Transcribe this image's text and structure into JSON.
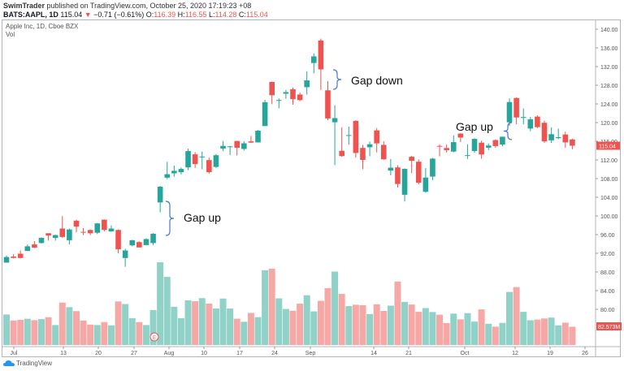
{
  "header": {
    "publisher": "SwimTrader",
    "published_text": "published on TradingView.com, October 25, 2020 17:19:23 +08",
    "symbol": "BATS:AAPL, 1D",
    "last": "115.04",
    "change": "−0.71 (−0.61%)",
    "o_label": "O:",
    "o": "116.39",
    "h_label": "H:",
    "h": "116.55",
    "l_label": "L:",
    "l": "114.28",
    "c_label": "C:",
    "c": "115.04"
  },
  "legend": {
    "title": "Apple Inc, 1D, Cboe BZX",
    "vol": "Vol"
  },
  "footer": {
    "brand": "TradingView"
  },
  "colors": {
    "up": "#26a69a",
    "down": "#ef5350",
    "vol_up": "#90d1c8",
    "vol_down": "#f6a8a6",
    "annotation": "#4a78c9"
  },
  "chart_data": {
    "type": "candlestick",
    "title": "Apple Inc, 1D, Cboe BZX",
    "ylim": [
      76,
      142
    ],
    "y_ticks": [
      "140.00",
      "136.00",
      "132.00",
      "128.00",
      "124.00",
      "120.00",
      "116.00",
      "112.00",
      "108.00",
      "104.00",
      "100.00",
      "96.00",
      "92.00",
      "88.00",
      "84.00",
      "80.00"
    ],
    "x_tick_labels": [
      "Jul",
      "13",
      "20",
      "27",
      "Aug",
      "10",
      "17",
      "24",
      "Sep",
      "14",
      "21",
      "Oct",
      "12",
      "19",
      "26"
    ],
    "last_price_label": "115.04",
    "last_volume_label": "82.573M",
    "earnings_marker": "E",
    "annotations": [
      {
        "text": "Gap up",
        "date": "2020-07-31"
      },
      {
        "text": "Gap down",
        "date": "2020-09-03"
      },
      {
        "text": "Gap up",
        "date": "2020-10-12"
      }
    ],
    "dates": [
      "06-30",
      "07-01",
      "07-02",
      "07-06",
      "07-07",
      "07-08",
      "07-09",
      "07-10",
      "07-13",
      "07-14",
      "07-15",
      "07-16",
      "07-17",
      "07-20",
      "07-21",
      "07-22",
      "07-23",
      "07-24",
      "07-27",
      "07-28",
      "07-29",
      "07-30",
      "07-31",
      "08-03",
      "08-04",
      "08-05",
      "08-06",
      "08-07",
      "08-10",
      "08-11",
      "08-12",
      "08-13",
      "08-14",
      "08-17",
      "08-18",
      "08-19",
      "08-20",
      "08-21",
      "08-24",
      "08-25",
      "08-26",
      "08-27",
      "08-28",
      "08-31",
      "09-01",
      "09-02",
      "09-03",
      "09-04",
      "09-08",
      "09-09",
      "09-10",
      "09-11",
      "09-14",
      "09-15",
      "09-16",
      "09-17",
      "09-18",
      "09-21",
      "09-22",
      "09-23",
      "09-24",
      "09-25",
      "09-28",
      "09-29",
      "09-30",
      "10-01",
      "10-02",
      "10-05",
      "10-06",
      "10-07",
      "10-08",
      "10-09",
      "10-12",
      "10-13",
      "10-14",
      "10-15",
      "10-16",
      "10-19",
      "10-20",
      "10-21",
      "10-22",
      "10-23"
    ],
    "ohlc": [
      [
        90.0,
        91.5,
        90.0,
        91.2
      ],
      [
        91.3,
        91.8,
        90.9,
        91.0
      ],
      [
        91.9,
        92.6,
        90.9,
        91.0
      ],
      [
        92.5,
        93.9,
        92.5,
        93.5
      ],
      [
        93.9,
        94.6,
        93.1,
        93.2
      ],
      [
        94.2,
        95.4,
        94.1,
        95.3
      ],
      [
        96.3,
        96.3,
        94.7,
        95.8
      ],
      [
        95.3,
        95.98,
        94.7,
        95.9
      ],
      [
        97.3,
        99.96,
        95.3,
        95.5
      ],
      [
        94.8,
        97.3,
        93.9,
        97.1
      ],
      [
        98.99,
        99.2,
        96.5,
        97.7
      ],
      [
        96.6,
        97.4,
        95.9,
        96.5
      ],
      [
        96.99,
        97.1,
        95.9,
        96.3
      ],
      [
        96.4,
        98.5,
        96.1,
        98.4
      ],
      [
        99.2,
        99.25,
        96.7,
        97.0
      ],
      [
        96.7,
        97.97,
        96.6,
        97.3
      ],
      [
        96.99,
        97.1,
        92.0,
        92.85
      ],
      [
        90.99,
        92.97,
        89.1,
        92.6
      ],
      [
        93.7,
        94.9,
        93.5,
        94.8
      ],
      [
        94.4,
        94.55,
        93.25,
        93.25
      ],
      [
        93.75,
        95.23,
        93.7,
        95.04
      ],
      [
        94.19,
        96.3,
        93.77,
        96.19
      ],
      [
        102.9,
        106.4,
        100.8,
        106.26
      ],
      [
        108.2,
        111.6,
        107.9,
        108.94
      ],
      [
        109.13,
        110.8,
        108.39,
        109.67
      ],
      [
        109.38,
        110.39,
        108.9,
        110.06
      ],
      [
        110.4,
        114.41,
        109.8,
        113.9
      ],
      [
        113.2,
        113.68,
        110.29,
        111.11
      ],
      [
        112.6,
        113.78,
        110.0,
        112.73
      ],
      [
        111.97,
        112.48,
        109.1,
        109.38
      ],
      [
        110.5,
        113.28,
        110.3,
        113.01
      ],
      [
        114.43,
        116.04,
        113.9,
        115.01
      ],
      [
        114.83,
        115.0,
        113.04,
        114.91
      ],
      [
        116.06,
        116.09,
        112.96,
        114.61
      ],
      [
        114.35,
        116.0,
        114.0,
        115.56
      ],
      [
        115.98,
        117.16,
        115.61,
        115.71
      ],
      [
        115.75,
        118.39,
        115.73,
        118.28
      ],
      [
        119.26,
        124.87,
        119.25,
        124.37
      ],
      [
        128.7,
        128.79,
        123.94,
        125.86
      ],
      [
        124.7,
        125.18,
        123.05,
        124.83
      ],
      [
        126.18,
        126.99,
        125.08,
        126.52
      ],
      [
        127.14,
        127.49,
        123.83,
        125.01
      ],
      [
        126.01,
        126.44,
        124.58,
        124.81
      ],
      [
        127.58,
        131.0,
        126.0,
        129.04
      ],
      [
        132.76,
        134.8,
        130.53,
        134.18
      ],
      [
        137.59,
        137.98,
        127.0,
        131.4
      ],
      [
        126.91,
        128.84,
        120.5,
        120.88
      ],
      [
        120.07,
        123.7,
        110.89,
        120.96
      ],
      [
        113.95,
        118.99,
        112.68,
        112.82
      ],
      [
        117.26,
        119.14,
        115.26,
        117.32
      ],
      [
        120.36,
        120.5,
        112.5,
        113.49
      ],
      [
        114.57,
        115.23,
        110.0,
        112.0
      ],
      [
        114.72,
        115.93,
        112.8,
        115.36
      ],
      [
        118.33,
        118.83,
        113.61,
        115.54
      ],
      [
        115.23,
        116.0,
        112.04,
        112.13
      ],
      [
        109.72,
        112.2,
        108.71,
        110.34
      ],
      [
        110.4,
        110.88,
        106.09,
        106.84
      ],
      [
        104.54,
        110.19,
        103.1,
        110.08
      ],
      [
        112.68,
        112.86,
        109.16,
        111.81
      ],
      [
        111.62,
        112.11,
        106.77,
        107.12
      ],
      [
        105.17,
        110.25,
        105.0,
        108.22
      ],
      [
        108.43,
        112.44,
        107.67,
        112.28
      ],
      [
        115.01,
        115.32,
        112.78,
        114.96
      ],
      [
        114.55,
        115.31,
        113.57,
        114.09
      ],
      [
        113.79,
        117.26,
        113.62,
        115.81
      ],
      [
        117.64,
        117.72,
        115.83,
        116.79
      ],
      [
        112.89,
        115.37,
        112.22,
        113.02
      ],
      [
        113.91,
        116.65,
        113.55,
        116.5
      ],
      [
        115.7,
        116.12,
        112.25,
        113.16
      ],
      [
        114.62,
        115.55,
        114.13,
        115.08
      ],
      [
        116.25,
        116.4,
        114.59,
        114.97
      ],
      [
        115.28,
        117.0,
        114.92,
        116.97
      ],
      [
        120.06,
        125.18,
        119.28,
        124.4
      ],
      [
        125.27,
        125.39,
        119.65,
        121.1
      ],
      [
        121.0,
        123.03,
        119.62,
        121.19
      ],
      [
        118.72,
        121.2,
        118.15,
        120.71
      ],
      [
        121.28,
        121.55,
        118.81,
        119.02
      ],
      [
        119.96,
        120.42,
        115.66,
        115.98
      ],
      [
        116.2,
        118.98,
        115.63,
        117.51
      ],
      [
        116.67,
        118.71,
        116.45,
        116.87
      ],
      [
        117.45,
        118.04,
        114.59,
        115.75
      ],
      [
        116.39,
        116.55,
        114.28,
        115.04
      ]
    ],
    "volume_millions": [
      138,
      110.7,
      114,
      118.7,
      112.4,
      117.1,
      125.6,
      90.3,
      191.6,
      171,
      153.2,
      110.6,
      92.2,
      90.3,
      103.6,
      89,
      197,
      185.4,
      121.2,
      103.6,
      90.3,
      158.1,
      374.3,
      308,
      173,
      121,
      202,
      198,
      212,
      187,
      165,
      210,
      165,
      119,
      105,
      145,
      126,
      338,
      345,
      211,
      163,
      155,
      187,
      225,
      152,
      200,
      257,
      332,
      231,
      176,
      182,
      180,
      140,
      184,
      154,
      178,
      287,
      195,
      183,
      150,
      167,
      149,
      137,
      99,
      142,
      116,
      144,
      106,
      161,
      96,
      83,
      100,
      240,
      262,
      150,
      112,
      115,
      120,
      124,
      89,
      101,
      82.573
    ]
  }
}
